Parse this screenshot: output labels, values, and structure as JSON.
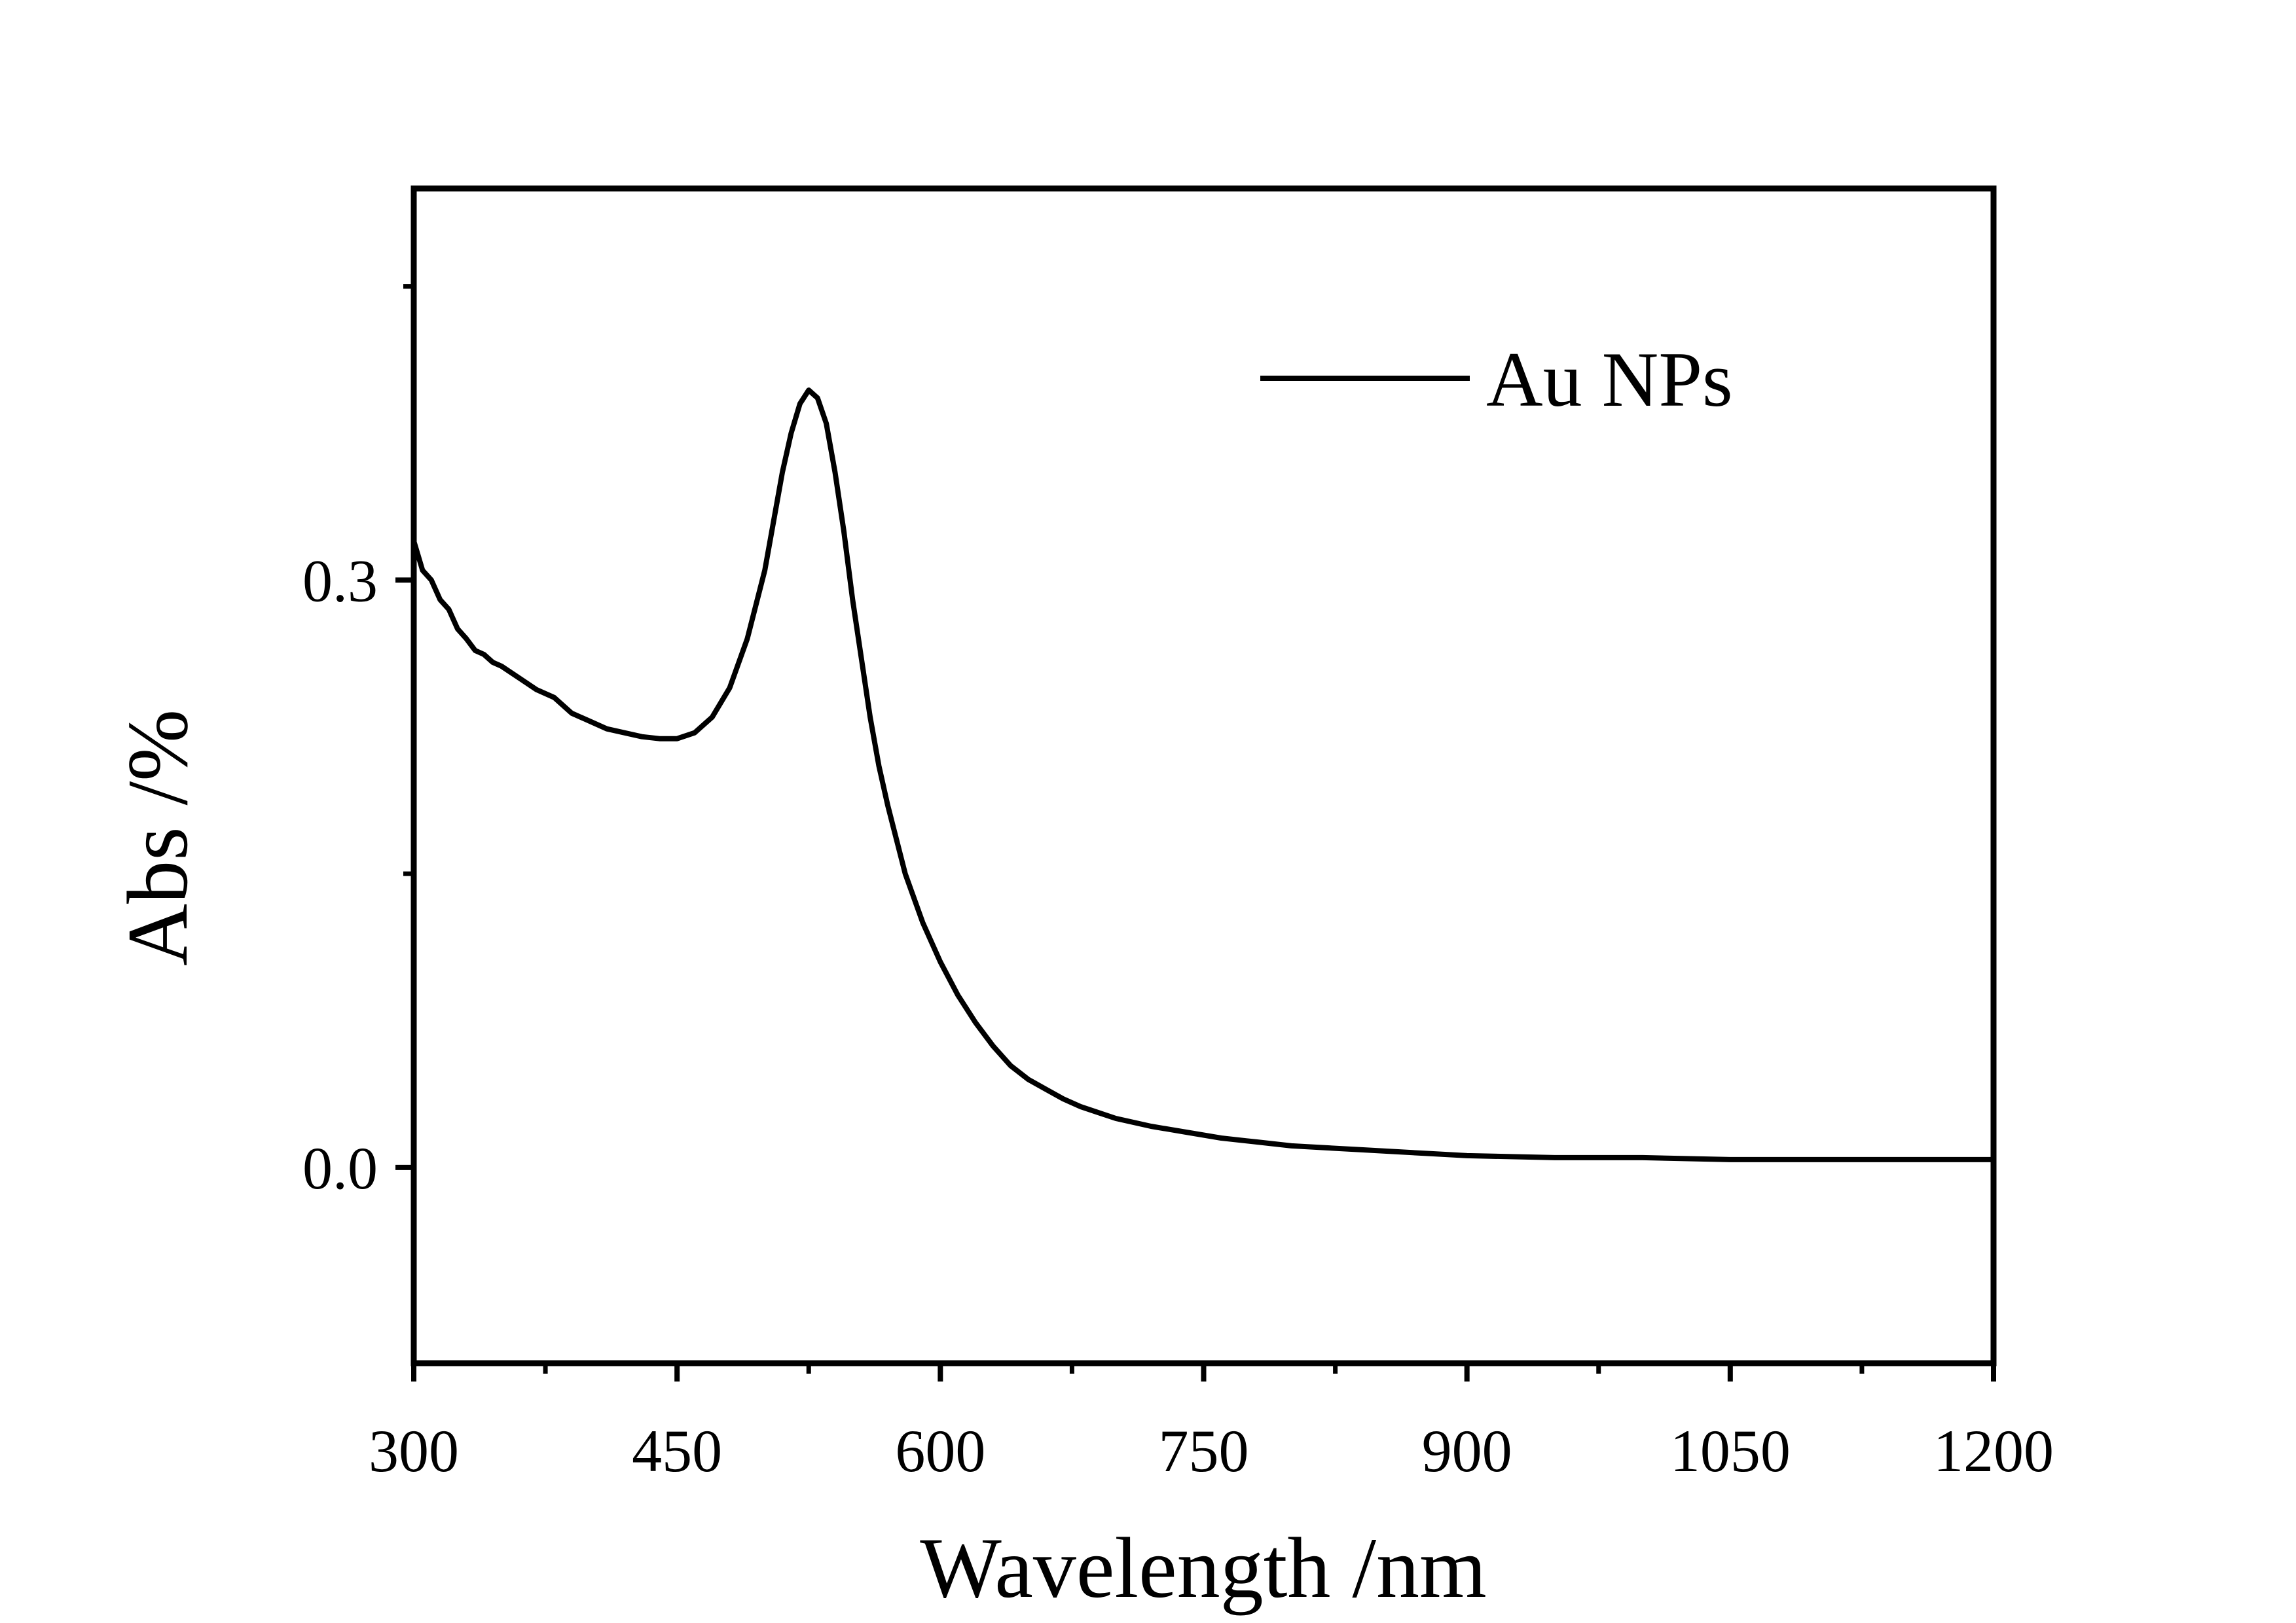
{
  "chart_data": {
    "type": "line",
    "title": "",
    "xlabel": "Wavelength /nm",
    "ylabel": "Abs /%",
    "xlim": [
      300,
      1200
    ],
    "ylim": [
      -0.1,
      0.5
    ],
    "x_ticks": [
      300,
      450,
      600,
      750,
      900,
      1050,
      1200
    ],
    "x_tick_labels": [
      "300",
      "450",
      "600",
      "750",
      "900",
      "1050",
      "1200"
    ],
    "x_minor_ticks": [
      375,
      525,
      675,
      825,
      975,
      1125
    ],
    "y_ticks": [
      0.0,
      0.3
    ],
    "y_tick_labels": [
      "0.0",
      "0.3"
    ],
    "y_minor_ticks": [
      0.15,
      0.45
    ],
    "grid": false,
    "legend_position": "top-right",
    "line_color": "#000000",
    "series": [
      {
        "name": "Au NPs",
        "x": [
          300,
          305,
          310,
          315,
          320,
          325,
          330,
          335,
          340,
          345,
          350,
          360,
          370,
          380,
          390,
          400,
          410,
          420,
          430,
          440,
          450,
          460,
          470,
          480,
          490,
          500,
          505,
          510,
          515,
          520,
          525,
          530,
          535,
          540,
          545,
          550,
          555,
          560,
          565,
          570,
          580,
          590,
          600,
          610,
          620,
          630,
          640,
          650,
          660,
          670,
          680,
          690,
          700,
          720,
          740,
          760,
          780,
          800,
          820,
          840,
          860,
          880,
          900,
          950,
          1000,
          1050,
          1100,
          1150,
          1200
        ],
        "y": [
          0.32,
          0.305,
          0.3,
          0.29,
          0.285,
          0.275,
          0.27,
          0.264,
          0.262,
          0.258,
          0.256,
          0.25,
          0.244,
          0.24,
          0.232,
          0.228,
          0.224,
          0.222,
          0.22,
          0.219,
          0.219,
          0.222,
          0.23,
          0.245,
          0.27,
          0.305,
          0.33,
          0.355,
          0.375,
          0.39,
          0.397,
          0.393,
          0.38,
          0.355,
          0.325,
          0.29,
          0.26,
          0.23,
          0.205,
          0.185,
          0.15,
          0.125,
          0.105,
          0.088,
          0.074,
          0.062,
          0.052,
          0.045,
          0.04,
          0.035,
          0.031,
          0.028,
          0.025,
          0.021,
          0.018,
          0.015,
          0.013,
          0.011,
          0.01,
          0.009,
          0.008,
          0.007,
          0.006,
          0.005,
          0.005,
          0.004,
          0.004,
          0.004,
          0.004
        ]
      }
    ]
  }
}
